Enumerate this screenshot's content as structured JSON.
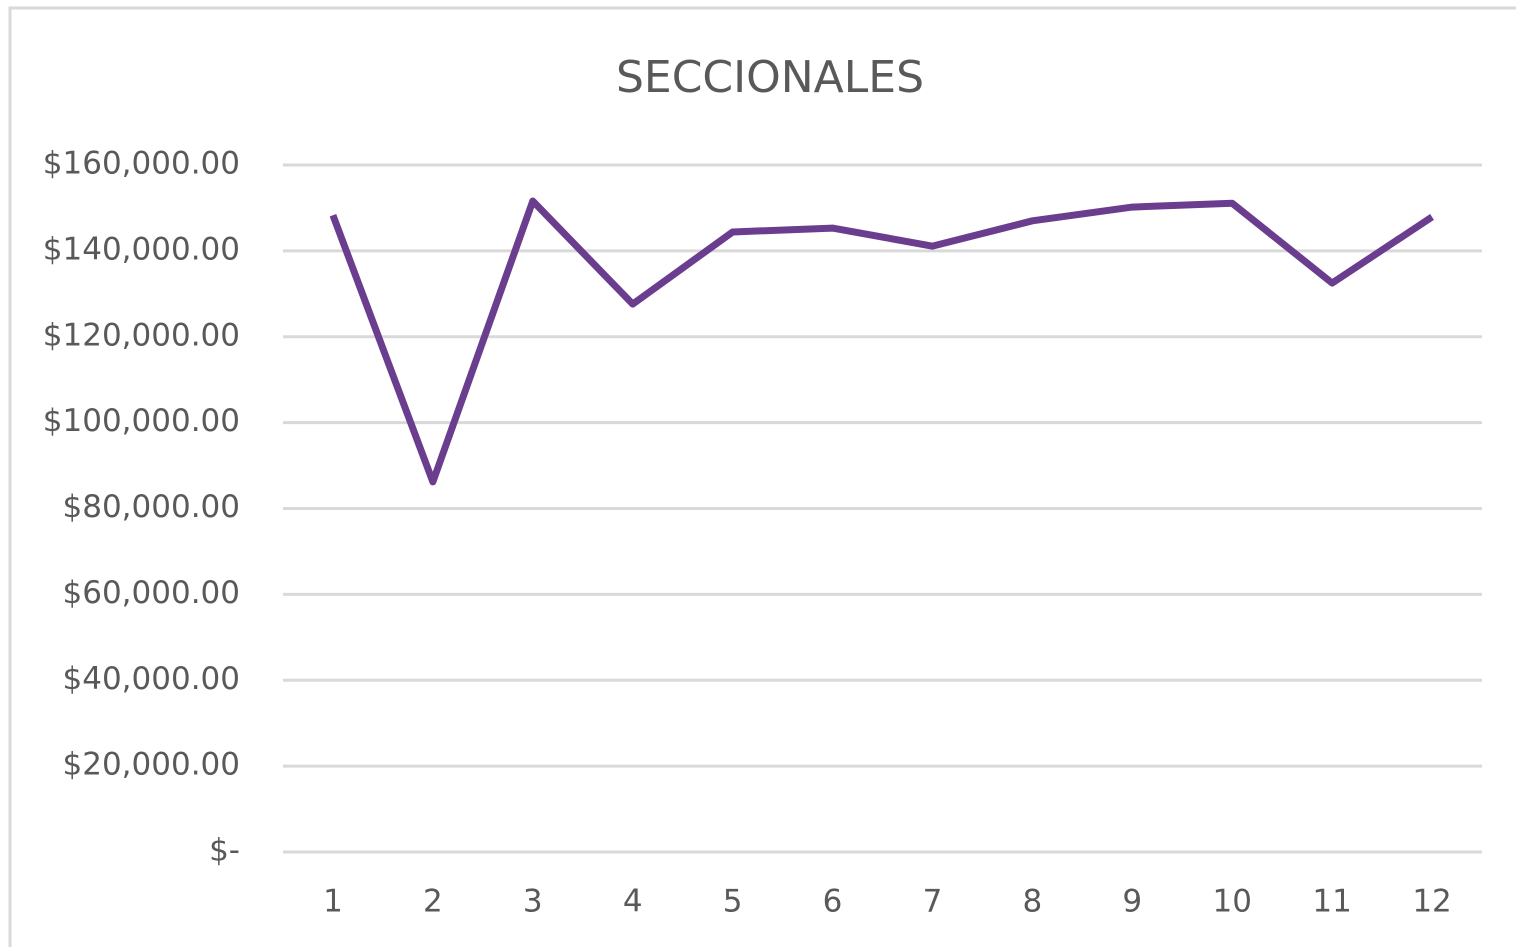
{
  "chart_data": {
    "type": "line",
    "title": "SECCIONALES",
    "categories": [
      "1",
      "2",
      "3",
      "4",
      "5",
      "6",
      "7",
      "8",
      "9",
      "10",
      "11",
      "12"
    ],
    "series": [
      {
        "name": "SECCIONALES",
        "color": "#6b3d8f",
        "values": [
          148300,
          86200,
          151600,
          127600,
          144400,
          145300,
          141100,
          147000,
          150200,
          151100,
          132500,
          147900
        ]
      }
    ],
    "ylim": [
      0,
      160000
    ],
    "yticks": [
      {
        "value": 0,
        "label": "$-"
      },
      {
        "value": 20000,
        "label": "$20,000.00"
      },
      {
        "value": 40000,
        "label": "$40,000.00"
      },
      {
        "value": 60000,
        "label": "$60,000.00"
      },
      {
        "value": 80000,
        "label": "$80,000.00"
      },
      {
        "value": 100000,
        "label": "$100,000.00"
      },
      {
        "value": 120000,
        "label": "$120,000.00"
      },
      {
        "value": 140000,
        "label": "$140,000.00"
      },
      {
        "value": 160000,
        "label": "$160,000.00"
      }
    ],
    "grid": true,
    "legend": false
  }
}
